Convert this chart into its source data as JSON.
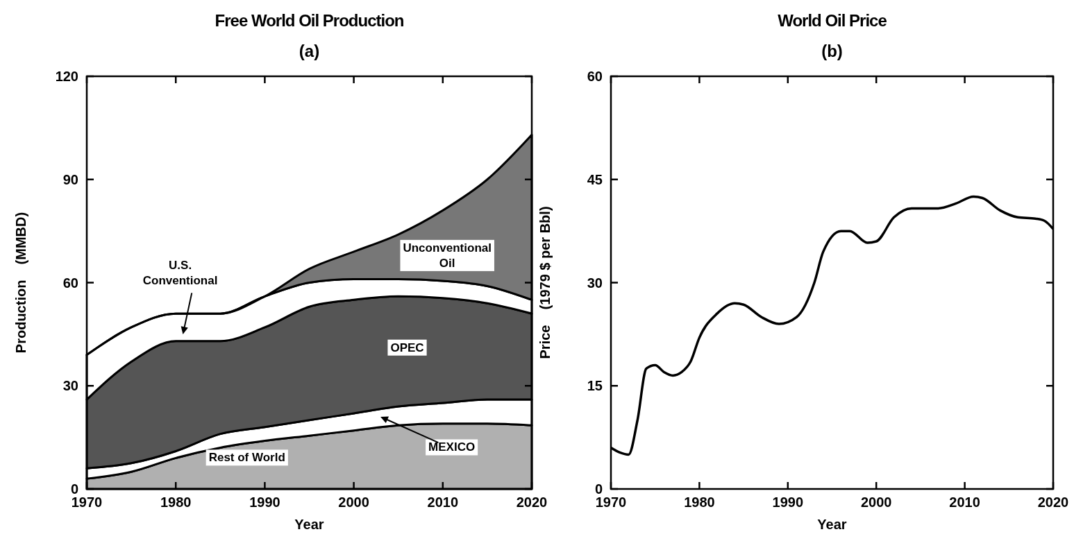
{
  "chart_data": [
    {
      "type": "area",
      "title": "Free World Oil Production",
      "subtitle": "(a)",
      "xlabel": "Year",
      "ylabel": "Production    (MMBD)",
      "stacked": true,
      "legend": false,
      "grid": false,
      "x": [
        1970,
        1975,
        1980,
        1985,
        1990,
        1995,
        2000,
        2005,
        2010,
        2015,
        2020
      ],
      "xlim": [
        1970,
        2020
      ],
      "xticks": [
        1970,
        1980,
        1990,
        2000,
        2010,
        2020
      ],
      "ylim": [
        0,
        120
      ],
      "yticks": [
        0,
        30,
        60,
        90,
        120
      ],
      "series": [
        {
          "name": "Rest of World",
          "color": "#b0b0b0",
          "values": [
            3,
            5,
            9,
            12,
            14,
            15.5,
            17,
            18.5,
            19,
            19,
            18.5
          ]
        },
        {
          "name": "MEXICO",
          "color": "#ffffff",
          "values": [
            3,
            2.5,
            2,
            4,
            4,
            4.5,
            5,
            5.5,
            6,
            7,
            7.5
          ]
        },
        {
          "name": "OPEC",
          "color": "#555555",
          "values": [
            20,
            29.5,
            32,
            27,
            29,
            33,
            33,
            32,
            30.5,
            28,
            25
          ]
        },
        {
          "name": "U.S. Conventional",
          "color": "#ffffff",
          "values": [
            13,
            10,
            8,
            8,
            9,
            7,
            6,
            5,
            5,
            5,
            4
          ]
        },
        {
          "name": "Unconventional Oil",
          "color": "#777777",
          "values": [
            0,
            0,
            0,
            0,
            0,
            4,
            8,
            13,
            20.5,
            31,
            48
          ]
        }
      ]
    },
    {
      "type": "line",
      "title": "World Oil Price",
      "subtitle": "(b)",
      "xlabel": "Year",
      "ylabel": "Price    (1979 $ per Bbl)",
      "legend": false,
      "grid": false,
      "marker": "none",
      "line_style": "solid",
      "xlim": [
        1970,
        2020
      ],
      "xticks": [
        1970,
        1980,
        1990,
        2000,
        2010,
        2020
      ],
      "ylim": [
        0,
        60
      ],
      "yticks": [
        0,
        15,
        30,
        45,
        60
      ],
      "series": [
        {
          "color": "#000000",
          "x": [
            1970,
            1971,
            1972,
            1973,
            1974,
            1975,
            1976,
            1977,
            1978,
            1979,
            1980,
            1982,
            1984,
            1985,
            1987,
            1989,
            1991,
            1993,
            1994,
            1996,
            1997,
            1999,
            2000,
            2002,
            2004,
            2007,
            2009,
            2011,
            2012,
            2014,
            2016,
            2018,
            2019,
            2020
          ],
          "values": [
            6,
            5.3,
            5,
            10,
            17.5,
            18,
            17,
            16.5,
            17,
            18.5,
            22,
            25.5,
            27,
            26.8,
            25,
            24,
            25,
            30,
            34.5,
            37.5,
            37.5,
            35.8,
            36,
            39.5,
            40.8,
            40.8,
            41.5,
            42.5,
            42.3,
            40.5,
            39.5,
            39.3,
            39,
            37.8
          ]
        }
      ]
    }
  ]
}
